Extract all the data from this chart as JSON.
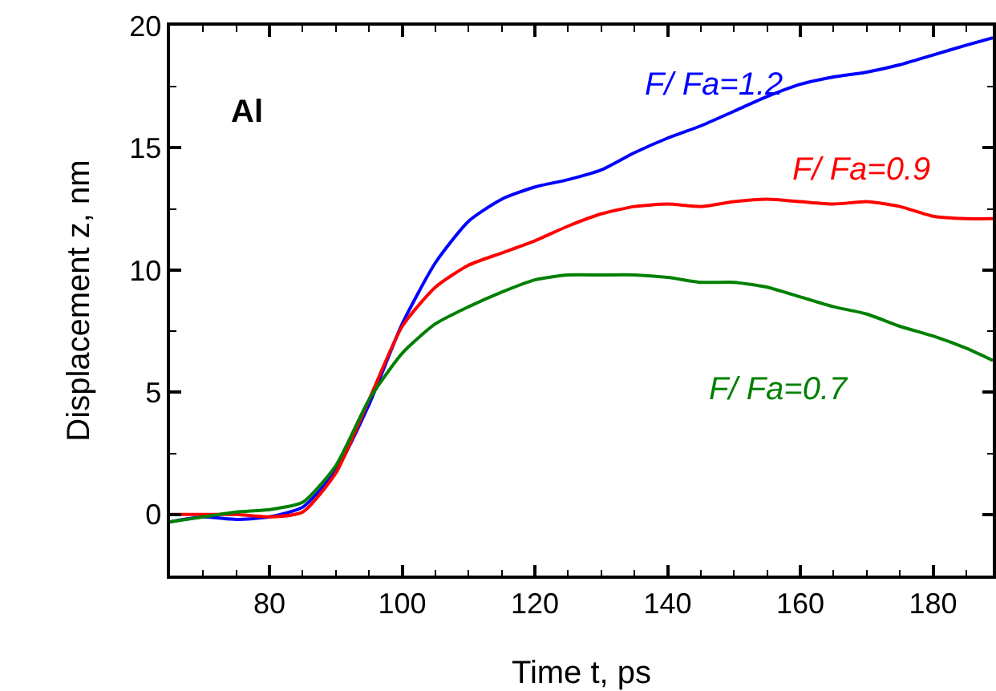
{
  "chart_data": {
    "type": "line",
    "xlabel": "Time t, ps",
    "ylabel": "Displacement z, nm",
    "annotations": [
      "Al"
    ],
    "legend": false,
    "grid": false,
    "x": [
      65,
      70,
      75,
      80,
      85,
      90,
      95,
      100,
      105,
      110,
      115,
      120,
      125,
      130,
      135,
      140,
      145,
      150,
      155,
      160,
      165,
      170,
      175,
      180,
      185,
      189
    ],
    "xlim": [
      65,
      189
    ],
    "xticks": [
      80,
      100,
      120,
      140,
      160,
      180
    ],
    "ylim": [
      -2.5,
      20
    ],
    "yticks": [
      0,
      5,
      10,
      15,
      20
    ],
    "series": [
      {
        "name": "F/ Fa=1.2",
        "color": "#0000ff",
        "values": [
          -0.3,
          -0.1,
          -0.2,
          -0.1,
          0.3,
          1.8,
          4.5,
          7.8,
          10.3,
          12.0,
          12.9,
          13.4,
          13.7,
          14.1,
          14.8,
          15.4,
          15.9,
          16.5,
          17.1,
          17.6,
          17.9,
          18.1,
          18.4,
          18.8,
          19.2,
          19.5
        ]
      },
      {
        "name": "F/ Fa=0.9",
        "color": "#ff0000",
        "values": [
          0,
          0,
          0,
          -0.1,
          0.1,
          1.7,
          4.7,
          7.7,
          9.3,
          10.2,
          10.7,
          11.2,
          11.8,
          12.3,
          12.6,
          12.7,
          12.6,
          12.8,
          12.9,
          12.8,
          12.7,
          12.8,
          12.6,
          12.2,
          12.1,
          12.1
        ]
      },
      {
        "name": "F/ Fa=0.7",
        "color": "#008000",
        "values": [
          -0.3,
          -0.1,
          0.1,
          0.2,
          0.5,
          2.0,
          4.7,
          6.6,
          7.8,
          8.5,
          9.1,
          9.6,
          9.8,
          9.8,
          9.8,
          9.7,
          9.5,
          9.5,
          9.3,
          8.9,
          8.5,
          8.2,
          7.7,
          7.3,
          6.8,
          6.3
        ]
      }
    ]
  }
}
